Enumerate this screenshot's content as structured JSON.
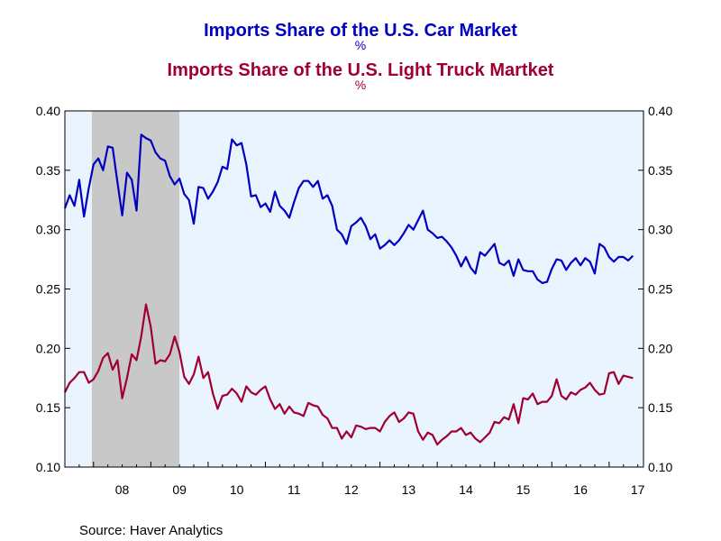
{
  "chart_data": {
    "type": "line",
    "titles": [
      {
        "text": "Imports Share of the U.S. Car Market",
        "unit": "%",
        "color": "#0000c0"
      },
      {
        "text": "Imports Share of the U.S. Light Truck Martket",
        "unit": "%",
        "color": "#a00030"
      }
    ],
    "source": "Source:  Haver Analytics",
    "x_tick_labels": [
      "08",
      "09",
      "10",
      "11",
      "12",
      "13",
      "14",
      "15",
      "16",
      "17"
    ],
    "x_range": [
      2007.5,
      2017.6
    ],
    "ylim": [
      0.1,
      0.4
    ],
    "y_ticks": [
      0.1,
      0.15,
      0.2,
      0.25,
      0.3,
      0.35,
      0.4
    ],
    "y_tick_labels": [
      "0.10",
      "0.15",
      "0.20",
      "0.25",
      "0.30",
      "0.35",
      "0.40"
    ],
    "recession_shading": {
      "start": 2007.97,
      "end": 2009.5,
      "color": "#c8c8c8"
    },
    "plot_background": "#eaf4ff",
    "grid": false,
    "series": [
      {
        "name": "Imports Share of the U.S. Car Market",
        "color": "#0000c0",
        "x_start": 2007.5,
        "x_step": 0.08333,
        "values": [
          0.318,
          0.329,
          0.32,
          0.342,
          0.311,
          0.335,
          0.355,
          0.36,
          0.35,
          0.37,
          0.369,
          0.34,
          0.312,
          0.348,
          0.342,
          0.316,
          0.38,
          0.377,
          0.375,
          0.365,
          0.36,
          0.358,
          0.345,
          0.338,
          0.343,
          0.33,
          0.325,
          0.305,
          0.336,
          0.335,
          0.326,
          0.332,
          0.34,
          0.353,
          0.351,
          0.376,
          0.371,
          0.373,
          0.355,
          0.328,
          0.329,
          0.319,
          0.322,
          0.315,
          0.332,
          0.32,
          0.316,
          0.31,
          0.323,
          0.335,
          0.341,
          0.341,
          0.336,
          0.341,
          0.326,
          0.329,
          0.32,
          0.3,
          0.296,
          0.288,
          0.303,
          0.306,
          0.31,
          0.303,
          0.292,
          0.296,
          0.284,
          0.287,
          0.291,
          0.287,
          0.291,
          0.297,
          0.304,
          0.3,
          0.308,
          0.316,
          0.3,
          0.297,
          0.293,
          0.294,
          0.29,
          0.285,
          0.278,
          0.269,
          0.277,
          0.268,
          0.263,
          0.281,
          0.278,
          0.283,
          0.288,
          0.272,
          0.27,
          0.274,
          0.261,
          0.275,
          0.266,
          0.265,
          0.265,
          0.258,
          0.255,
          0.256,
          0.267,
          0.275,
          0.274,
          0.266,
          0.272,
          0.276,
          0.27,
          0.276,
          0.273,
          0.263,
          0.288,
          0.285,
          0.277,
          0.273,
          0.277,
          0.277,
          0.274,
          0.278
        ]
      },
      {
        "name": "Imports Share of the U.S. Light Truck Martket",
        "color": "#a00030",
        "x_start": 2007.5,
        "x_step": 0.08333,
        "values": [
          0.163,
          0.171,
          0.175,
          0.18,
          0.18,
          0.171,
          0.174,
          0.181,
          0.192,
          0.196,
          0.182,
          0.19,
          0.158,
          0.175,
          0.195,
          0.19,
          0.21,
          0.237,
          0.218,
          0.187,
          0.19,
          0.189,
          0.195,
          0.21,
          0.197,
          0.176,
          0.17,
          0.178,
          0.193,
          0.175,
          0.18,
          0.162,
          0.149,
          0.16,
          0.161,
          0.166,
          0.162,
          0.155,
          0.168,
          0.163,
          0.161,
          0.165,
          0.168,
          0.157,
          0.149,
          0.153,
          0.145,
          0.151,
          0.146,
          0.145,
          0.143,
          0.154,
          0.152,
          0.151,
          0.144,
          0.141,
          0.133,
          0.133,
          0.124,
          0.13,
          0.125,
          0.135,
          0.134,
          0.132,
          0.133,
          0.133,
          0.13,
          0.138,
          0.143,
          0.146,
          0.138,
          0.141,
          0.146,
          0.145,
          0.13,
          0.123,
          0.129,
          0.127,
          0.119,
          0.123,
          0.126,
          0.13,
          0.13,
          0.133,
          0.127,
          0.129,
          0.124,
          0.121,
          0.125,
          0.129,
          0.138,
          0.137,
          0.142,
          0.14,
          0.153,
          0.137,
          0.158,
          0.157,
          0.162,
          0.153,
          0.155,
          0.155,
          0.16,
          0.174,
          0.16,
          0.157,
          0.163,
          0.161,
          0.165,
          0.167,
          0.171,
          0.165,
          0.161,
          0.162,
          0.179,
          0.18,
          0.17,
          0.177,
          0.176,
          0.175
        ]
      }
    ]
  }
}
